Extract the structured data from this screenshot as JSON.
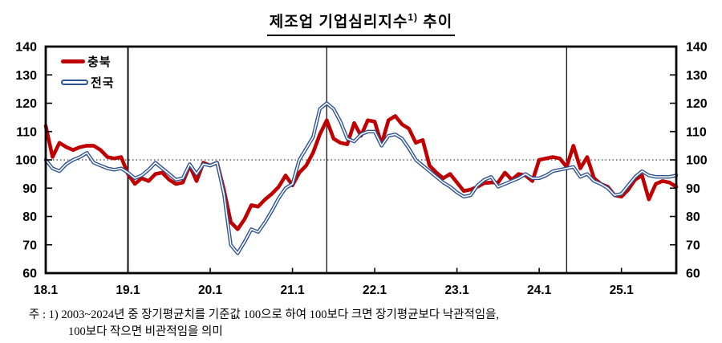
{
  "title": {
    "main": "제조업  기업심리지수",
    "sup": "1)",
    "tail": " 추이"
  },
  "legend": [
    {
      "label": "충북",
      "color": "#C00000",
      "style": "solid-thick"
    },
    {
      "label": "전국",
      "color": "#2E5395",
      "style": "double-outline"
    }
  ],
  "footnote": {
    "line1": "주 : 1) 2003~2024년 중 장기평균치를 기준값 100으로 하여 100보다 크면 장기평균보다 낙관적임을,",
    "line2": "100보다 작으면 비관적임을 의미"
  },
  "chart_data": {
    "type": "line",
    "title": "제조업 기업심리지수 추이",
    "frequency": "monthly",
    "x_start": "2018.1",
    "x_end": "2025.9",
    "x_tick_labels": [
      {
        "label": "18.1",
        "m": 0
      },
      {
        "label": "19.1",
        "m": 12
      },
      {
        "label": "20.1",
        "m": 24
      },
      {
        "label": "21.1",
        "m": 36
      },
      {
        "label": "22.1",
        "m": 48
      },
      {
        "label": "23.1",
        "m": 60
      },
      {
        "label": "24.1",
        "m": 72
      },
      {
        "label": "25.1",
        "m": 84
      }
    ],
    "y_axis": {
      "min": 60,
      "max": 140,
      "tick_step": 10,
      "tick_labels": [
        140,
        130,
        120,
        110,
        100,
        90,
        80,
        70,
        60
      ]
    },
    "reference_line_y": 100,
    "vertical_lines_month_index": [
      12,
      41,
      76
    ],
    "grid": false,
    "legend_position": "top-left",
    "series": [
      {
        "name": "충북",
        "color": "#C00000",
        "values": [
          112,
          101,
          106,
          104.5,
          103.5,
          104.5,
          105,
          105,
          103.5,
          101,
          100.5,
          101,
          95,
          91.5,
          93.5,
          92.5,
          95,
          95.5,
          93,
          91.5,
          92,
          98,
          92.5,
          99,
          98,
          99,
          89.5,
          78,
          75.5,
          79,
          84,
          83.5,
          86,
          88,
          90.5,
          94.5,
          91,
          95.5,
          98,
          102.5,
          109,
          114,
          107.5,
          106,
          105.5,
          113,
          108.5,
          114,
          113.5,
          105.5,
          114,
          115.5,
          112.5,
          111,
          106,
          107,
          98,
          95.5,
          93.5,
          95,
          92,
          89,
          89.5,
          90.5,
          91.8,
          92,
          92,
          95.5,
          93,
          95,
          94.5,
          92.5,
          100,
          100.5,
          101,
          100.5,
          97.5,
          105,
          97,
          101,
          93.5,
          91.5,
          90.5,
          87.5,
          87,
          89.5,
          93,
          94.5,
          86,
          91.5,
          92.5,
          92,
          90.5
        ]
      },
      {
        "name": "전국",
        "color": "#2E5395",
        "values": [
          100,
          97,
          96,
          98.5,
          100,
          101,
          102.5,
          99,
          98,
          97,
          96.5,
          97,
          95.5,
          93.5,
          94.5,
          96.5,
          99,
          97,
          95,
          93,
          93.5,
          98.5,
          95,
          98.5,
          98,
          99,
          88,
          70,
          67,
          71,
          75.5,
          74.5,
          78,
          82,
          86.5,
          90,
          91.5,
          100,
          104,
          108,
          118,
          120,
          118,
          113.5,
          107.5,
          106.5,
          109,
          110,
          110,
          105,
          108.5,
          109,
          107.5,
          104,
          100,
          98,
          96,
          94,
          92,
          90.5,
          88.5,
          87,
          87.5,
          91,
          93,
          94,
          90.5,
          91.5,
          92.5,
          93.5,
          95,
          93.5,
          93.5,
          94.5,
          96,
          96.5,
          97,
          97.5,
          94,
          95,
          92.5,
          91.5,
          90,
          87.5,
          88,
          91,
          94,
          96,
          94.5,
          94,
          94,
          94,
          94.5
        ]
      }
    ],
    "colors": {
      "chungbuk": "#C00000",
      "jeonguk": "#2E5395",
      "axis": "#000000",
      "reference": "#3a3a3a"
    }
  }
}
